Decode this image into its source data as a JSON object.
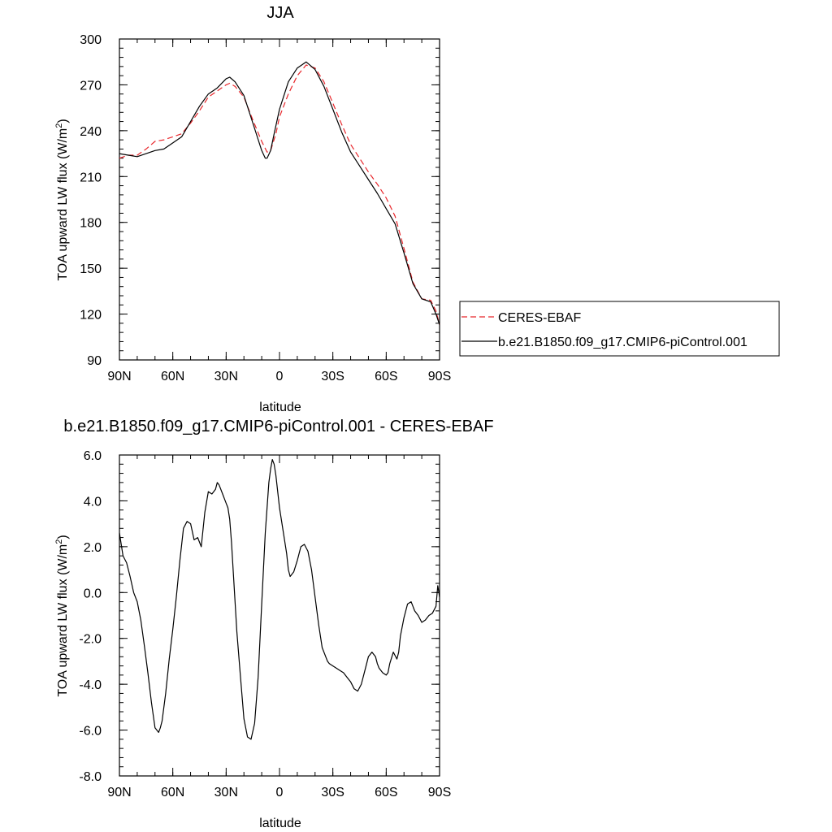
{
  "chart_data": [
    {
      "type": "line",
      "title": "JJA",
      "xlabel": "latitude",
      "ylabel": "TOA upward LW flux (W/m",
      "ylabel_superscript": "2",
      "ylabel_suffix": ")",
      "xlim": [
        90,
        -90
      ],
      "ylim": [
        90,
        300
      ],
      "x_ticks": [
        90,
        60,
        30,
        0,
        -30,
        -60,
        -90
      ],
      "x_tick_labels": [
        "90N",
        "60N",
        "30N",
        "0",
        "30S",
        "60S",
        "90S"
      ],
      "y_ticks": [
        90,
        120,
        150,
        180,
        210,
        240,
        270,
        300
      ],
      "y_tick_labels": [
        "90",
        "120",
        "150",
        "180",
        "210",
        "240",
        "270",
        "300"
      ],
      "grid": false,
      "legend_position": "right",
      "series": [
        {
          "name": "CERES-EBAF",
          "color": "#e8262b",
          "style": "dashed",
          "x": [
            90,
            85,
            80,
            75,
            70,
            65,
            60,
            55,
            50,
            45,
            40,
            35,
            30,
            28,
            25,
            20,
            15,
            10,
            7,
            5,
            2,
            0,
            -5,
            -10,
            -15,
            -20,
            -25,
            -30,
            -35,
            -40,
            -45,
            -50,
            -55,
            -60,
            -65,
            -70,
            -75,
            -80,
            -85,
            -88,
            -90
          ],
          "y": [
            222,
            224,
            224,
            228,
            233,
            234,
            236,
            238,
            245,
            253,
            262,
            266,
            270,
            271,
            269,
            262,
            247,
            233,
            226,
            227,
            238,
            249,
            264,
            276,
            283,
            281,
            272,
            258,
            244,
            231,
            222,
            213,
            205,
            196,
            184,
            163,
            141,
            130,
            129,
            122,
            113
          ]
        },
        {
          "name": "b.e21.B1850.f09_g17.CMIP6-piControl.001",
          "color": "#000000",
          "style": "solid",
          "x": [
            90,
            85,
            80,
            75,
            70,
            65,
            60,
            55,
            50,
            45,
            40,
            35,
            30,
            28,
            25,
            20,
            15,
            10,
            8,
            7,
            5,
            3,
            0,
            -5,
            -10,
            -15,
            -20,
            -25,
            -30,
            -35,
            -40,
            -45,
            -50,
            -55,
            -60,
            -65,
            -70,
            -75,
            -80,
            -85,
            -88,
            -90
          ],
          "y": [
            225,
            224,
            223,
            225,
            227,
            228,
            232,
            236,
            246,
            256,
            264,
            268,
            274,
            275,
            272,
            263,
            245,
            227,
            222,
            222,
            227,
            238,
            254,
            272,
            281,
            285,
            280,
            269,
            254,
            239,
            226,
            217,
            208,
            199,
            189,
            179,
            160,
            140,
            130,
            128,
            120,
            113
          ]
        }
      ]
    },
    {
      "type": "line",
      "title": "b.e21.B1850.f09_g17.CMIP6-piControl.001 - CERES-EBAF",
      "xlabel": "latitude",
      "ylabel": "TOA upward LW flux (W/m",
      "ylabel_superscript": "2",
      "ylabel_suffix": ")",
      "xlim": [
        90,
        -90
      ],
      "ylim": [
        -8,
        6
      ],
      "x_ticks": [
        90,
        60,
        30,
        0,
        -30,
        -60,
        -90
      ],
      "x_tick_labels": [
        "90N",
        "60N",
        "30N",
        "0",
        "30S",
        "60S",
        "90S"
      ],
      "y_ticks": [
        -8,
        -6,
        -4,
        -2,
        0,
        2,
        4,
        6
      ],
      "y_tick_labels": [
        "-8.0",
        "-6.0",
        "-4.0",
        "-2.0",
        "0.0",
        "2.0",
        "4.0",
        "6.0"
      ],
      "grid": false,
      "series": [
        {
          "color": "#000000",
          "style": "solid",
          "x": [
            90,
            89,
            88,
            86,
            84,
            82,
            80,
            78,
            76,
            74,
            72,
            70,
            68,
            67,
            66,
            64,
            62,
            60,
            58,
            56,
            54,
            52,
            50,
            48,
            46,
            44,
            42,
            40,
            38,
            36,
            35,
            34,
            32,
            31,
            30,
            29,
            28,
            27,
            26,
            24,
            22,
            20,
            18,
            16,
            14,
            12,
            10,
            8,
            6,
            5,
            4,
            3,
            2,
            0,
            -2,
            -4,
            -5,
            -6,
            -8,
            -10,
            -12,
            -14,
            -16,
            -18,
            -20,
            -22,
            -24,
            -26,
            -27,
            -28,
            -30,
            -32,
            -34,
            -36,
            -38,
            -40,
            -42,
            -44,
            -46,
            -48,
            -50,
            -52,
            -54,
            -55,
            -56,
            -58,
            -60,
            -61,
            -62,
            -64,
            -66,
            -67,
            -68,
            -70,
            -72,
            -74,
            -75,
            -76,
            -78,
            -80,
            -82,
            -84,
            -86,
            -88,
            -89,
            -90
          ],
          "y": [
            2.6,
            2.1,
            1.6,
            1.3,
            0.7,
            0.0,
            -0.4,
            -1.2,
            -2.3,
            -3.5,
            -4.8,
            -5.9,
            -6.1,
            -5.9,
            -5.6,
            -4.4,
            -2.9,
            -1.6,
            -0.2,
            1.4,
            2.8,
            3.1,
            3.0,
            2.3,
            2.4,
            2.0,
            3.5,
            4.4,
            4.3,
            4.5,
            4.8,
            4.7,
            4.3,
            4.1,
            3.9,
            3.7,
            3.2,
            2.2,
            0.9,
            -1.7,
            -3.6,
            -5.5,
            -6.3,
            -6.4,
            -5.7,
            -3.7,
            -0.5,
            2.6,
            4.8,
            5.4,
            5.8,
            5.6,
            5.1,
            3.7,
            2.7,
            1.7,
            1.0,
            0.7,
            0.9,
            1.4,
            2.0,
            2.1,
            1.8,
            1.0,
            -0.2,
            -1.4,
            -2.4,
            -2.8,
            -3.0,
            -3.1,
            -3.2,
            -3.3,
            -3.4,
            -3.5,
            -3.7,
            -3.9,
            -4.2,
            -4.3,
            -4.0,
            -3.4,
            -2.8,
            -2.6,
            -2.8,
            -3.1,
            -3.3,
            -3.5,
            -3.6,
            -3.5,
            -3.1,
            -2.6,
            -2.9,
            -2.6,
            -1.9,
            -1.1,
            -0.5,
            -0.4,
            -0.6,
            -0.8,
            -1.0,
            -1.3,
            -1.2,
            -1.0,
            -0.9,
            -0.6,
            0.3,
            -0.2
          ]
        }
      ]
    }
  ]
}
